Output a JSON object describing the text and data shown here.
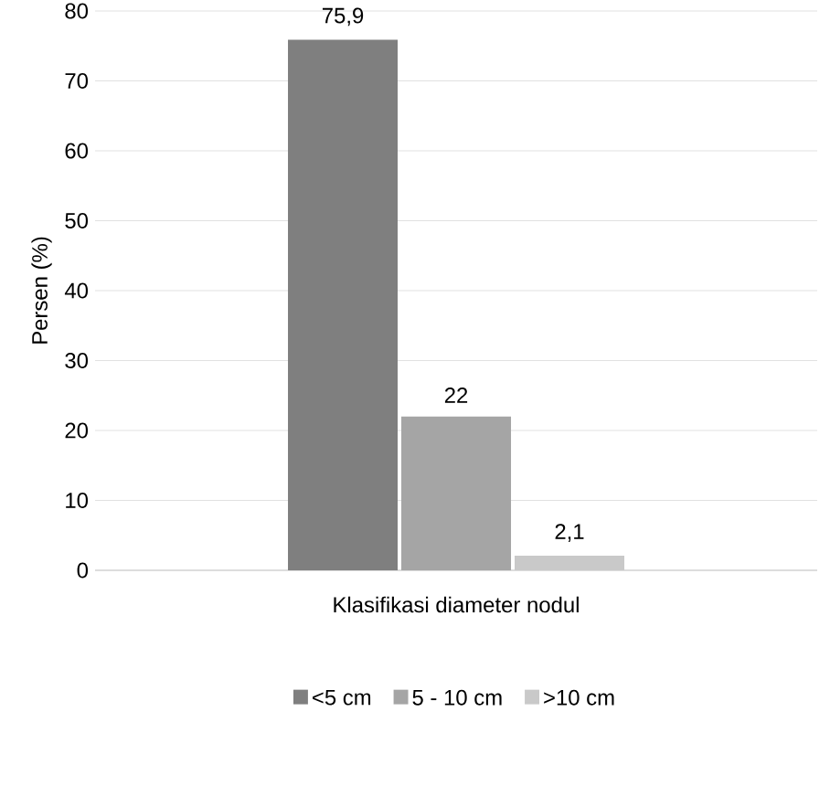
{
  "chart_data": {
    "type": "bar",
    "xlabel": "Klasifikasi diameter nodul",
    "ylabel": "Persen (%)",
    "categories": [
      null
    ],
    "series": [
      {
        "name": "<5 cm",
        "color": "#7f7f7f",
        "values": [
          75.9
        ],
        "value_labels": [
          "75,9"
        ]
      },
      {
        "name": "5 - 10 cm",
        "color": "#a5a5a5",
        "values": [
          22
        ],
        "value_labels": [
          "22"
        ]
      },
      {
        "name": ">10 cm",
        "color": "#c9c9c9",
        "values": [
          2.1
        ],
        "value_labels": [
          "2,1"
        ]
      }
    ],
    "ylim": [
      0,
      80
    ],
    "yticks": [
      0,
      10,
      20,
      30,
      40,
      50,
      60,
      70,
      80
    ],
    "grid": "y",
    "legend": "bottom"
  }
}
